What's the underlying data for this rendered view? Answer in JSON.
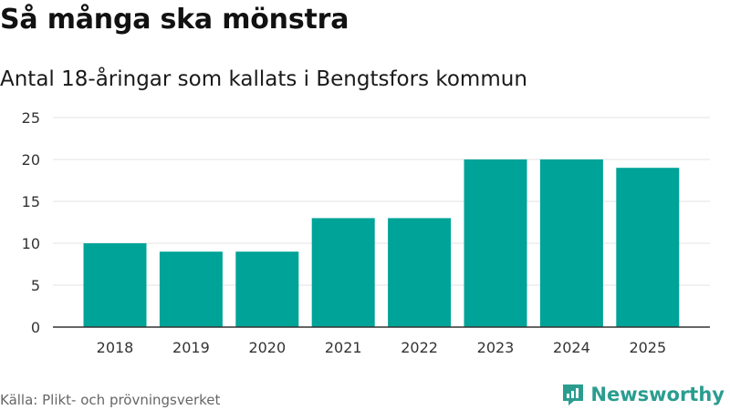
{
  "header": {
    "title": "Så många ska mönstra",
    "subtitle": "Antal 18-åringar som kallats i Bengtsfors kommun"
  },
  "footer": {
    "source": "Källa: Plikt- och prövningsverket",
    "brand": "Newsworthy"
  },
  "colors": {
    "bar": "#00a398",
    "grid": "#e3e3e3",
    "axis": "#333333",
    "brand": "#2a9d8f"
  },
  "chart_data": {
    "type": "bar",
    "title": "Så många ska mönstra",
    "subtitle": "Antal 18-åringar som kallats i Bengtsfors kommun",
    "xlabel": "",
    "ylabel": "",
    "categories": [
      "2018",
      "2019",
      "2020",
      "2021",
      "2022",
      "2023",
      "2024",
      "2025"
    ],
    "values": [
      10,
      9,
      9,
      13,
      13,
      20,
      20,
      19
    ],
    "ylim": [
      0,
      25
    ],
    "yticks": [
      0,
      5,
      10,
      15,
      20,
      25
    ],
    "grid": true,
    "legend": "none"
  }
}
